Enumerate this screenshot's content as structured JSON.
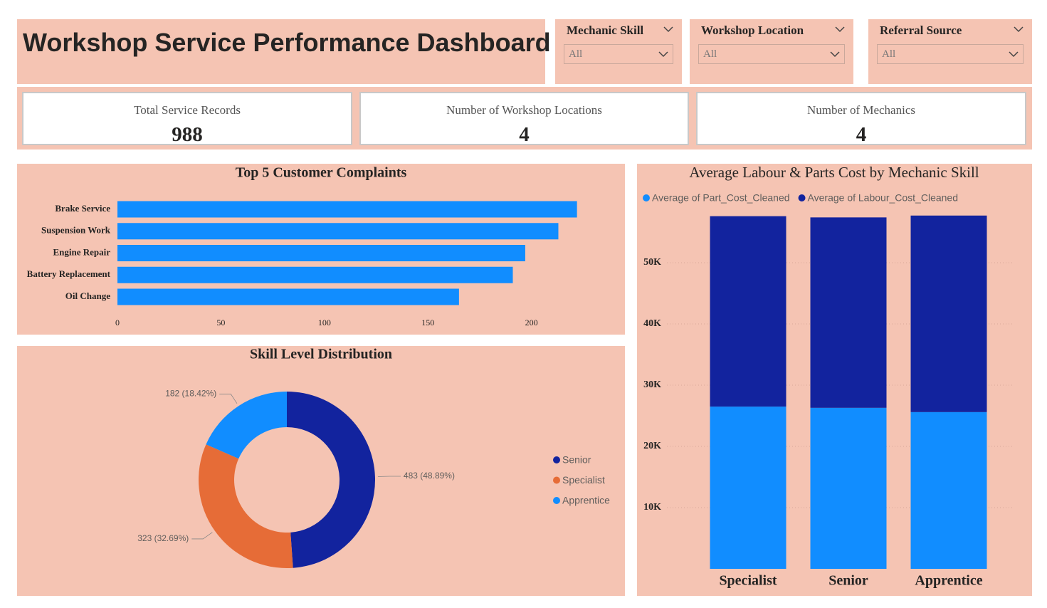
{
  "header": {
    "title": "Workshop Service Performance Dashboard"
  },
  "filters": [
    {
      "label": "Mechanic Skill",
      "value": "All"
    },
    {
      "label": "Workshop Location",
      "value": "All"
    },
    {
      "label": "Referral Source",
      "value": "All"
    }
  ],
  "kpis": [
    {
      "label": "Total Service Records",
      "value": 988
    },
    {
      "label": "Number of Workshop Locations",
      "value": 4
    },
    {
      "label": "Number of Mechanics",
      "value": 4
    }
  ],
  "chart_data": [
    {
      "type": "bar",
      "orientation": "horizontal",
      "title": "Top 5 Customer Complaints",
      "categories": [
        "Brake Service",
        "Suspension Work",
        "Engine Repair",
        "Battery Replacement",
        "Oil Change"
      ],
      "values": [
        222,
        213,
        197,
        191,
        165
      ],
      "color": "#118DFF",
      "xlim": [
        0,
        240
      ],
      "xticks": [
        0,
        50,
        100,
        150,
        200
      ],
      "grid": false
    },
    {
      "type": "donut",
      "title": "Skill Level Distribution",
      "categories": [
        "Senior",
        "Specialist",
        "Apprentice"
      ],
      "values": [
        483,
        323,
        182
      ],
      "value_labels": [
        "483 (48.89%)",
        "323 (32.69%)",
        "182 (18.42%)"
      ],
      "colors": [
        "#12239E",
        "#E66C37",
        "#118DFF"
      ],
      "legend": "right"
    },
    {
      "type": "stacked_bar",
      "title": "Average Labour & Parts Cost by Mechanic Skill",
      "categories": [
        "Specialist",
        "Senior",
        "Apprentice"
      ],
      "series": [
        {
          "name": "Average of Part_Cost_Cleaned",
          "color": "#118DFF",
          "values": [
            26500,
            26300,
            25600
          ]
        },
        {
          "name": "Average of Labour_Cost_Cleaned",
          "color": "#12239E",
          "values": [
            31100,
            31100,
            32100
          ]
        }
      ],
      "ylim": [
        0,
        58000
      ],
      "yticks": [
        {
          "value": 10000,
          "label": "10K"
        },
        {
          "value": 20000,
          "label": "20K"
        },
        {
          "value": 30000,
          "label": "30K"
        },
        {
          "value": 40000,
          "label": "40K"
        },
        {
          "value": 50000,
          "label": "50K"
        }
      ],
      "grid": true,
      "legend": "top-left"
    }
  ]
}
